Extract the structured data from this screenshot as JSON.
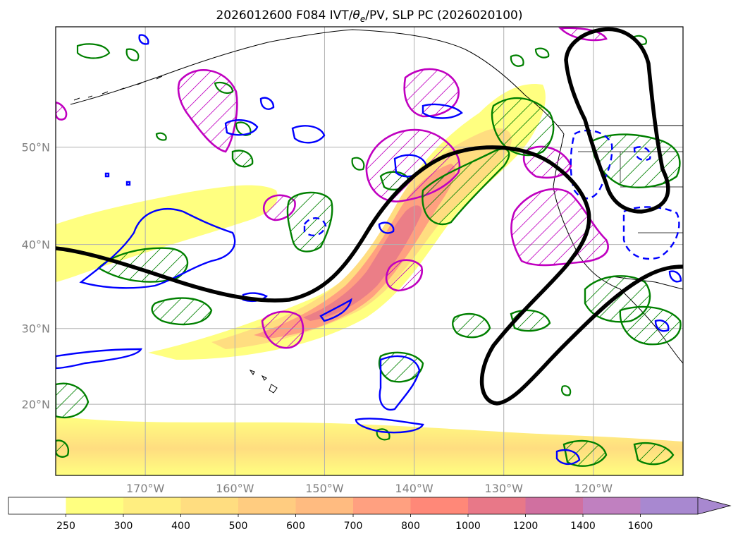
{
  "title": "2026012600 F084 IVT/θe/PV, SLP PC (2026020100)",
  "title_parts": {
    "prefix": "2026012600 F084 IVT/",
    "theta": "θ",
    "theta_sub": "e",
    "suffix": "/PV, SLP PC (2026020100)"
  },
  "map": {
    "lon_ticks": [
      {
        "lon": -170,
        "label": "170°W"
      },
      {
        "lon": -160,
        "label": "160°W"
      },
      {
        "lon": -150,
        "label": "150°W"
      },
      {
        "lon": -140,
        "label": "140°W"
      },
      {
        "lon": -130,
        "label": "130°W"
      },
      {
        "lon": -120,
        "label": "120°W"
      }
    ],
    "lat_ticks": [
      {
        "lat": 20,
        "label": "20°N"
      },
      {
        "lat": 30,
        "label": "30°N"
      },
      {
        "lat": 40,
        "label": "40°N"
      },
      {
        "lat": 50,
        "label": "50°N"
      }
    ],
    "extent": {
      "lon_min": -180,
      "lon_max": -110,
      "lat_min": 10,
      "lat_max": 60
    }
  },
  "colorbar": {
    "levels": [
      "250",
      "300",
      "400",
      "500",
      "600",
      "700",
      "800",
      "1000",
      "1200",
      "1400",
      "1600"
    ],
    "colors": [
      "#ffffff",
      "#ffff80",
      "#ffee80",
      "#ffdd80",
      "#ffcc80",
      "#ffbb80",
      "#ffa080",
      "#ff8878",
      "#e87888",
      "#d070a0",
      "#c080c0",
      "#a888d0"
    ],
    "extend": "max"
  },
  "colors": {
    "slp_contour": "#000000",
    "pv_contour": "#0000ff",
    "theta_e_contour": "#008000",
    "hatch_contour": "#c000c0",
    "gridline": "#b0b0b0",
    "coastline": "#000000"
  }
}
